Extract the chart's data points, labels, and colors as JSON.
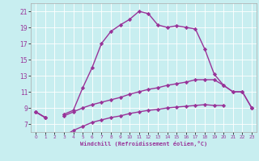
{
  "xlabel": "Windchill (Refroidissement éolien,°C)",
  "background_color": "#c8eef0",
  "line_color": "#993399",
  "x_all": [
    0,
    1,
    2,
    3,
    4,
    5,
    6,
    7,
    8,
    9,
    10,
    11,
    12,
    13,
    14,
    15,
    16,
    17,
    18,
    19,
    20,
    21,
    22,
    23
  ],
  "line1_y": [
    8.5,
    7.8,
    null,
    8.2,
    8.7,
    11.5,
    14.0,
    17.0,
    18.5,
    19.3,
    20.0,
    21.0,
    20.7,
    19.3,
    19.0,
    19.2,
    19.0,
    18.8,
    16.3,
    13.2,
    11.8,
    11.0,
    11.0,
    9.0
  ],
  "line2_y": [
    8.5,
    7.8,
    null,
    8.0,
    8.5,
    9.0,
    9.4,
    9.7,
    10.0,
    10.3,
    10.7,
    11.0,
    11.3,
    11.5,
    11.8,
    12.0,
    12.2,
    12.5,
    12.5,
    12.5,
    11.8,
    11.0,
    11.0,
    9.0
  ],
  "line3_y": [
    8.5,
    7.8,
    null,
    5.5,
    6.2,
    6.7,
    7.2,
    7.5,
    7.8,
    8.0,
    8.3,
    8.5,
    8.7,
    8.8,
    9.0,
    9.1,
    9.2,
    9.3,
    9.4,
    9.3,
    9.3,
    null,
    null,
    9.0
  ],
  "xlim": [
    -0.5,
    23.5
  ],
  "ylim": [
    6.0,
    22.0
  ],
  "yticks": [
    7,
    9,
    11,
    13,
    15,
    17,
    19,
    21
  ],
  "xticks": [
    0,
    1,
    2,
    3,
    4,
    5,
    6,
    7,
    8,
    9,
    10,
    11,
    12,
    13,
    14,
    15,
    16,
    17,
    18,
    19,
    20,
    21,
    22,
    23
  ],
  "grid_color": "#ffffff",
  "marker": "D",
  "markersize": 2.2,
  "linewidth": 1.0
}
